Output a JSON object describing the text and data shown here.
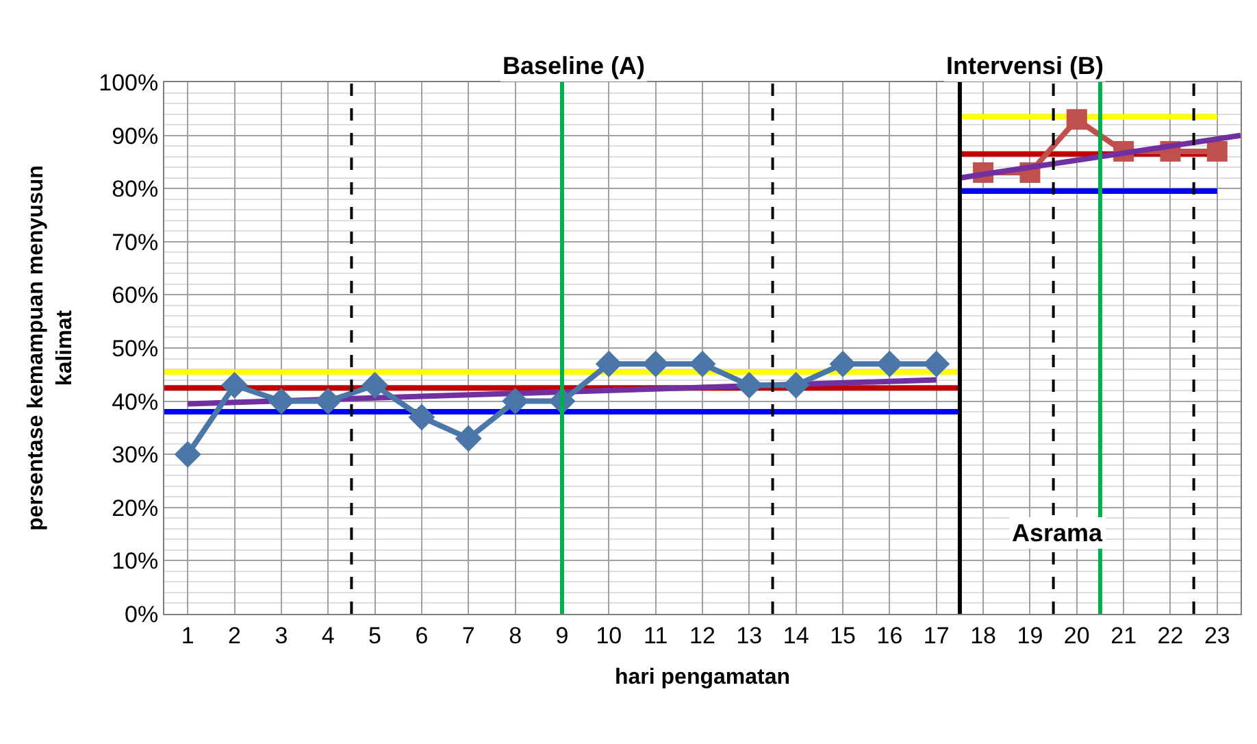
{
  "chart_data": {
    "type": "line",
    "xlabel": "hari pengamatan",
    "ylabel": "persentase kemampuan menyusun kalimat",
    "xlim": [
      0.5,
      23.5
    ],
    "xticks": [
      1,
      2,
      3,
      4,
      5,
      6,
      7,
      8,
      9,
      10,
      11,
      12,
      13,
      14,
      15,
      16,
      17,
      18,
      19,
      20,
      21,
      22,
      23
    ],
    "ylim": [
      0,
      100
    ],
    "yticks": [
      {
        "value": 0,
        "label": "0%"
      },
      {
        "value": 10,
        "label": "10%"
      },
      {
        "value": 20,
        "label": "20%"
      },
      {
        "value": 30,
        "label": "30%"
      },
      {
        "value": 40,
        "label": "40%"
      },
      {
        "value": 50,
        "label": "50%"
      },
      {
        "value": 60,
        "label": "60%"
      },
      {
        "value": 70,
        "label": "70%"
      },
      {
        "value": 80,
        "label": "80%"
      },
      {
        "value": 90,
        "label": "90%"
      },
      {
        "value": 100,
        "label": "100%"
      }
    ],
    "grid": true,
    "series": [
      {
        "color": "#ffff00",
        "marker": "none",
        "x": [
          0.5,
          17.5
        ],
        "values": [
          45.5,
          45.5
        ]
      },
      {
        "color": "#c00000",
        "marker": "none",
        "x": [
          0.5,
          17.5
        ],
        "values": [
          42.5,
          42.5
        ]
      },
      {
        "color": "#0000ff",
        "marker": "none",
        "x": [
          0.5,
          17.5
        ],
        "values": [
          38,
          38
        ]
      },
      {
        "color": "#7030a0",
        "marker": "none",
        "x": [
          1,
          17
        ],
        "values": [
          39.5,
          44
        ]
      },
      {
        "color": "#ffff00",
        "marker": "none",
        "x": [
          17.5,
          23
        ],
        "values": [
          93.5,
          93.5
        ]
      },
      {
        "color": "#c00000",
        "marker": "none",
        "x": [
          17.5,
          23
        ],
        "values": [
          86.5,
          86.5
        ]
      },
      {
        "color": "#0000ff",
        "marker": "none",
        "x": [
          17.5,
          23
        ],
        "values": [
          79.5,
          79.5
        ]
      },
      {
        "color": "#4a76a8",
        "marker": "diamond",
        "x": [
          1,
          2,
          3,
          4,
          5,
          6,
          7,
          8,
          9,
          10,
          11,
          12,
          13,
          14,
          15,
          16,
          17
        ],
        "values": [
          30,
          43,
          40,
          40,
          43,
          37,
          33,
          40,
          40,
          47,
          47,
          47,
          43,
          43,
          47,
          47,
          47
        ]
      },
      {
        "color": "#c0504d",
        "marker": "square",
        "x": [
          18,
          19,
          20,
          21,
          22,
          23
        ],
        "values": [
          83,
          83,
          93,
          87,
          87,
          87
        ]
      },
      {
        "color": "#7030a0",
        "marker": "none",
        "x": [
          17.5,
          23.5
        ],
        "values": [
          82,
          90
        ]
      }
    ],
    "ref_lines": [
      {
        "axis": "x",
        "value": 4.5,
        "color": "#000000",
        "line_style": "dashed"
      },
      {
        "axis": "x",
        "value": 9,
        "color": "#00b050",
        "line_style": "solid"
      },
      {
        "axis": "x",
        "value": 13.5,
        "color": "#000000",
        "line_style": "dashed"
      },
      {
        "axis": "x",
        "value": 17.5,
        "color": "#000000",
        "line_style": "solid"
      },
      {
        "axis": "x",
        "value": 19.5,
        "color": "#000000",
        "line_style": "dashed"
      },
      {
        "axis": "x",
        "value": 20.5,
        "color": "#00b050",
        "line_style": "solid"
      },
      {
        "axis": "x",
        "value": 22.5,
        "color": "#000000",
        "line_style": "dashed"
      }
    ],
    "annotations": [
      "Baseline (A)",
      "Intervensi (B)",
      "Asrama"
    ]
  }
}
